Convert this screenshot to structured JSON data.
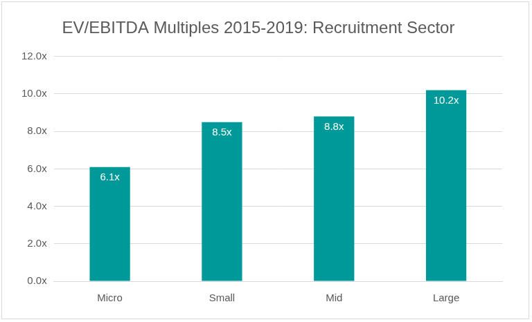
{
  "chart_data": {
    "type": "bar",
    "title": "EV/EBITDA Multiples 2015-2019: Recruitment Sector",
    "categories": [
      "Micro",
      "Small",
      "Mid",
      "Large"
    ],
    "values": [
      6.1,
      8.5,
      8.8,
      10.2
    ],
    "value_labels": [
      "6.1x",
      "8.5x",
      "8.8x",
      "10.2x"
    ],
    "color": "#009999",
    "ylim": [
      0,
      12
    ],
    "yticks": [
      {
        "value": 0,
        "label": "0.0x"
      },
      {
        "value": 2,
        "label": "2.0x"
      },
      {
        "value": 4,
        "label": "4.0x"
      },
      {
        "value": 6,
        "label": "6.0x"
      },
      {
        "value": 8,
        "label": "8.0x"
      },
      {
        "value": 10,
        "label": "10.0x"
      },
      {
        "value": 12,
        "label": "12.0x"
      }
    ],
    "grid": true,
    "data_labels": true
  }
}
